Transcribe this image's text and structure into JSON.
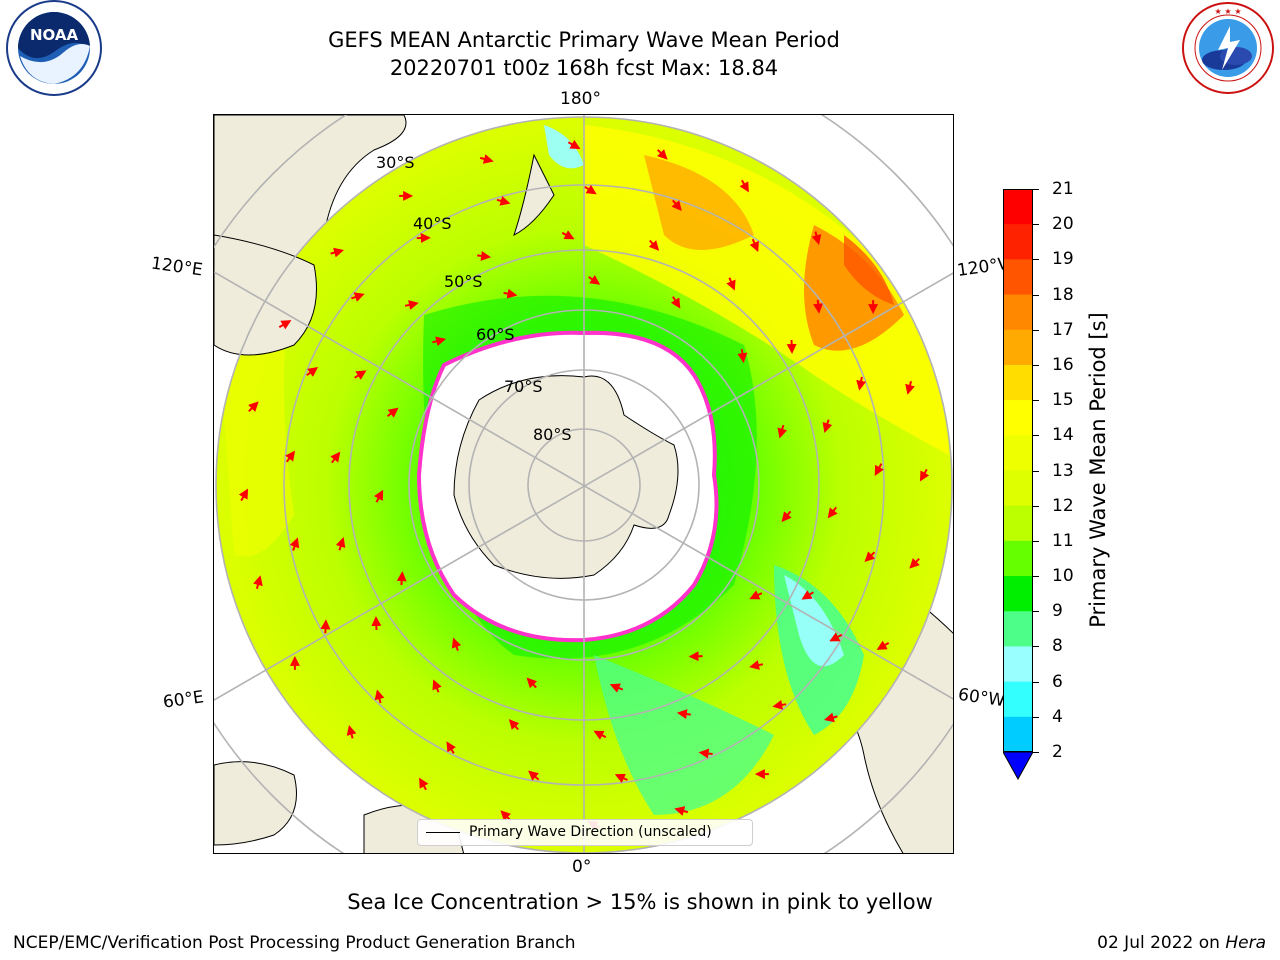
{
  "header": {
    "title_line1": "GEFS MEAN Antarctic Primary Wave Mean Period",
    "title_line2": "20220701 t00z 168h fcst   Max: 18.84"
  },
  "logos": {
    "left": {
      "text": "NOAA",
      "ring_text": "NATIONAL OCEANIC AND ATMOSPHERIC ADMINISTRATION · U.S. DEPARTMENT OF COMMERCE"
    },
    "right": {
      "ring_text": "NATIONAL WEATHER SERVICE"
    }
  },
  "map": {
    "projection": "south-polar-stereographic",
    "longitude_labels": {
      "top": "180°",
      "bottom": "0°",
      "upper_left": "120°E",
      "upper_right": "120°W",
      "lower_left": "60°E",
      "lower_right": "60°W"
    },
    "latitude_labels": [
      "30°S",
      "40°S",
      "50°S",
      "60°S",
      "70°S",
      "80°S"
    ],
    "colors": {
      "land": "#efecdc",
      "ice_shelf": "#ffffff",
      "gridline": "#b3b3b3",
      "arrow": "#ff0000",
      "sea_ice_edge": "#ff33cc"
    }
  },
  "legend": {
    "line_label": "Primary Wave Direction (unscaled)"
  },
  "colorbar": {
    "label": "Primary Wave Mean Period [s]",
    "ticks": [
      "2",
      "4",
      "6",
      "8",
      "9",
      "10",
      "11",
      "12",
      "13",
      "14",
      "15",
      "16",
      "17",
      "18",
      "19",
      "20",
      "21"
    ],
    "colors": [
      "#0066ff",
      "#00ccff",
      "#33ffff",
      "#99ffff",
      "#4dff88",
      "#00ee00",
      "#66ff00",
      "#bbff00",
      "#ddff00",
      "#eeff00",
      "#ffff00",
      "#ffdd00",
      "#ffaa00",
      "#ff8800",
      "#ff5500",
      "#ff2200",
      "#ff0000"
    ],
    "under_color": "#0000ff"
  },
  "subtitle": "Sea Ice Concentration > 15% is shown in pink to yellow",
  "footer": {
    "left": "NCEP/EMC/Verification Post Processing Product Generation Branch",
    "right_date": "02 Jul 2022 on ",
    "right_host": "Hera"
  }
}
